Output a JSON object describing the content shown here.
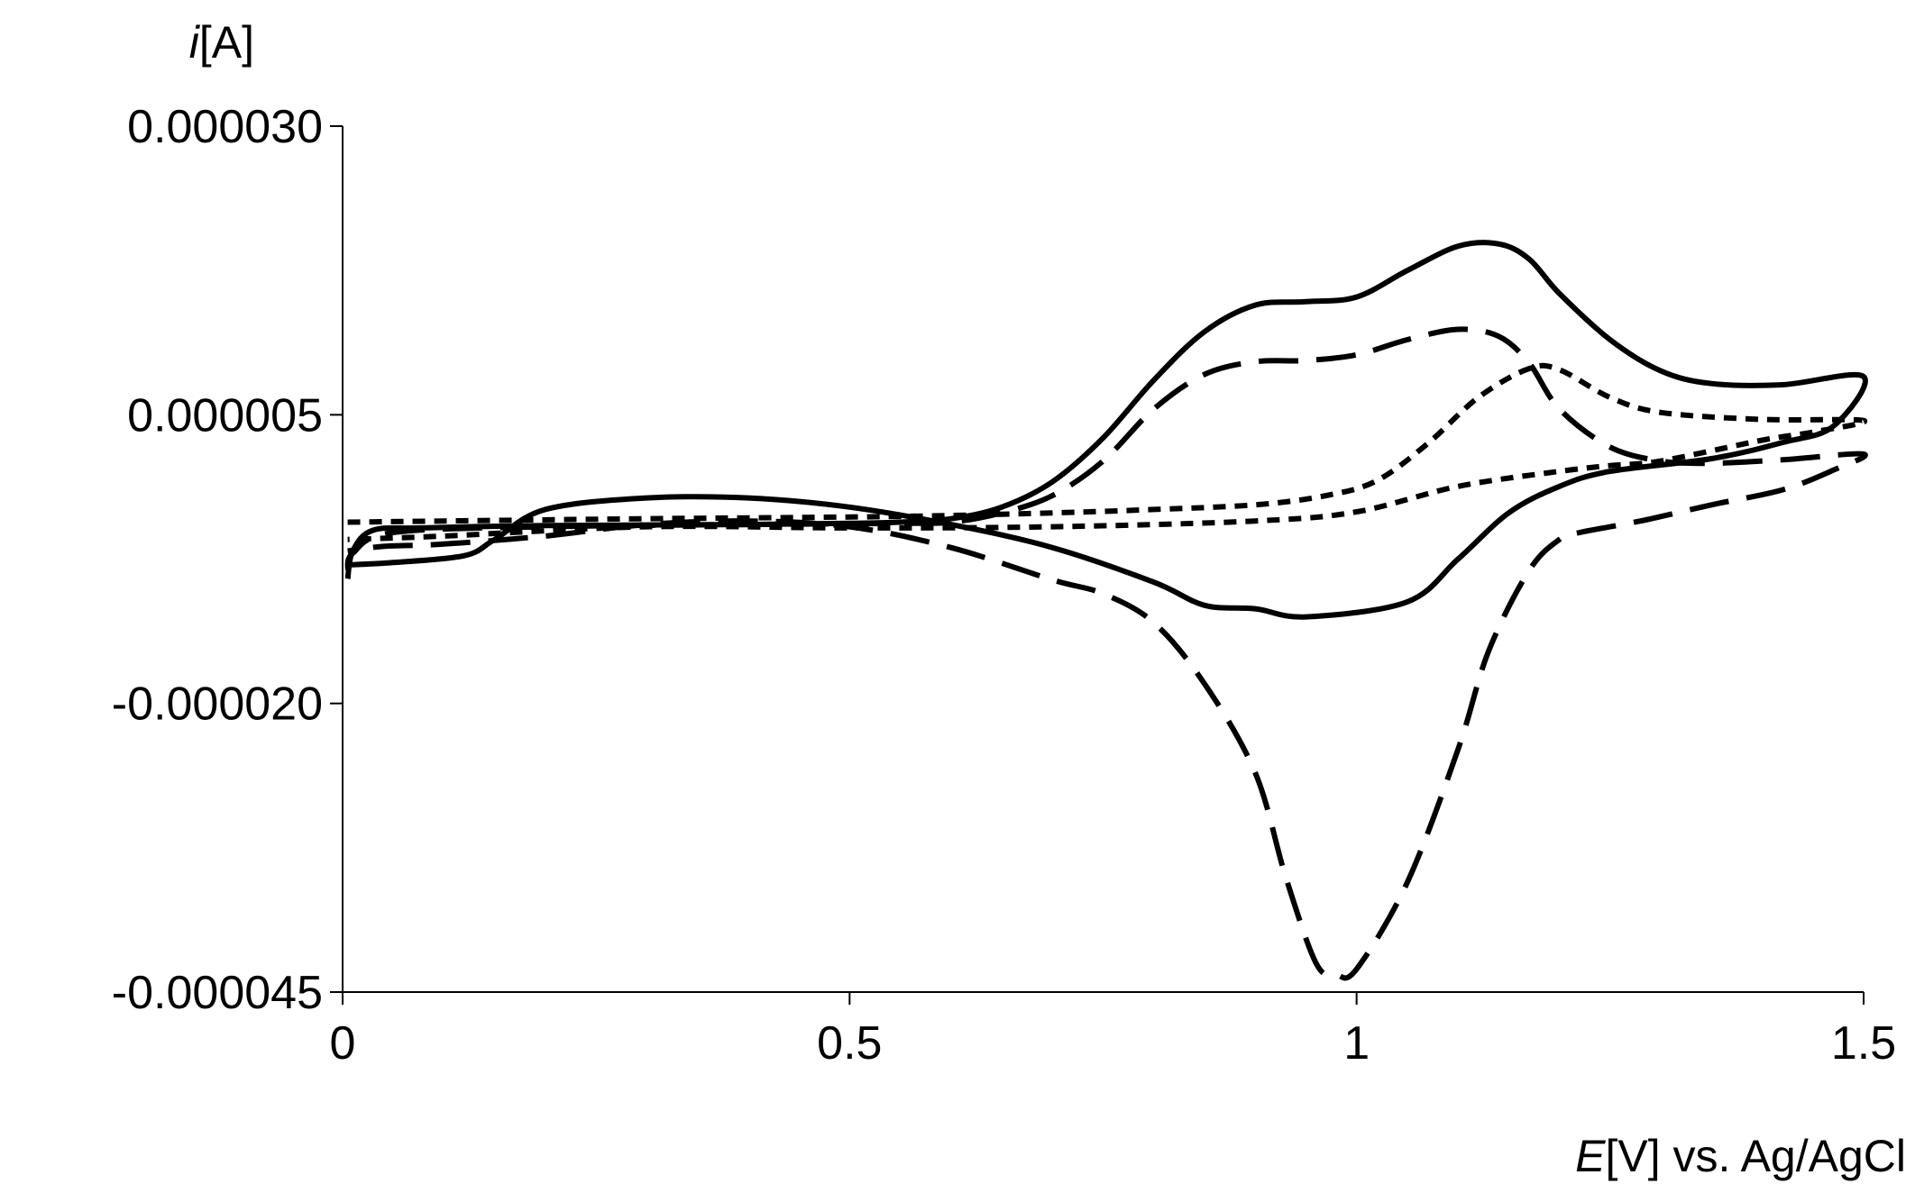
{
  "chart_data": {
    "type": "line",
    "title": "",
    "xlabel_italic": "E",
    "xlabel_rest": "[V] vs. Ag/AgCl",
    "ylabel_italic": "i",
    "ylabel_rest": "[A]",
    "xlim": [
      0,
      1.5
    ],
    "ylim": [
      -4.5e-05,
      3e-05
    ],
    "xticks": [
      0,
      0.5,
      1,
      1.5
    ],
    "xtick_labels": [
      "0",
      "0.5",
      "1",
      "1.5"
    ],
    "yticks": [
      3e-05,
      5e-06,
      -2e-05,
      -4.5e-05
    ],
    "ytick_labels": [
      "0.000030",
      "0.000005",
      "-0.000020",
      "-0.000045"
    ],
    "grid": false,
    "legend": "none",
    "series": [
      {
        "style": "solid",
        "color": "#000000",
        "points": [
          [
            0.005,
            -9.2e-06
          ],
          [
            0.01,
            -6.8e-06
          ],
          [
            0.03,
            -5e-06
          ],
          [
            0.08,
            -4.8e-06
          ],
          [
            0.2,
            -4.6e-06
          ],
          [
            0.4,
            -4.5e-06
          ],
          [
            0.5,
            -4.4e-06
          ],
          [
            0.55,
            -4.3e-06
          ],
          [
            0.6,
            -4e-06
          ],
          [
            0.65,
            -3e-06
          ],
          [
            0.7,
            -8e-07
          ],
          [
            0.75,
            3e-06
          ],
          [
            0.8,
            8e-06
          ],
          [
            0.85,
            1.22e-05
          ],
          [
            0.9,
            1.45e-05
          ],
          [
            0.95,
            1.48e-05
          ],
          [
            1.0,
            1.52e-05
          ],
          [
            1.05,
            1.75e-05
          ],
          [
            1.1,
            1.96e-05
          ],
          [
            1.14,
            1.98e-05
          ],
          [
            1.17,
            1.85e-05
          ],
          [
            1.2,
            1.55e-05
          ],
          [
            1.25,
            1.15e-05
          ],
          [
            1.3,
            8.8e-06
          ],
          [
            1.35,
            7.7e-06
          ],
          [
            1.42,
            7.6e-06
          ],
          [
            1.5,
            8.3e-06
          ],
          [
            1.47,
            4e-06
          ],
          [
            1.42,
            2.6e-06
          ],
          [
            1.35,
            1.2e-06
          ],
          [
            1.25,
            1e-07
          ],
          [
            1.2,
            -1.2e-06
          ],
          [
            1.15,
            -3.5e-06
          ],
          [
            1.1,
            -7.5e-06
          ],
          [
            1.05,
            -1.12e-05
          ],
          [
            0.95,
            -1.25e-05
          ],
          [
            0.9,
            -1.18e-05
          ],
          [
            0.85,
            -1.15e-05
          ],
          [
            0.8,
            -9.5e-06
          ],
          [
            0.7,
            -6.5e-06
          ],
          [
            0.6,
            -4.5e-06
          ],
          [
            0.5,
            -3e-06
          ],
          [
            0.4,
            -2.2e-06
          ],
          [
            0.3,
            -2.2e-06
          ],
          [
            0.2,
            -3.2e-06
          ],
          [
            0.15,
            -5.8e-06
          ],
          [
            0.12,
            -7.2e-06
          ],
          [
            0.05,
            -7.8e-06
          ],
          [
            0.005,
            -8e-06
          ]
        ]
      },
      {
        "style": "dashed",
        "color": "#000000",
        "points": [
          [
            0.005,
            -8.5e-06
          ],
          [
            0.01,
            -7e-06
          ],
          [
            0.05,
            -5.2e-06
          ],
          [
            0.2,
            -4.7e-06
          ],
          [
            0.4,
            -4.5e-06
          ],
          [
            0.55,
            -4.4e-06
          ],
          [
            0.6,
            -4.3e-06
          ],
          [
            0.65,
            -3.5e-06
          ],
          [
            0.7,
            -2e-06
          ],
          [
            0.75,
            1e-06
          ],
          [
            0.8,
            5.5e-06
          ],
          [
            0.85,
            8.5e-06
          ],
          [
            0.9,
            9.6e-06
          ],
          [
            0.95,
            9.7e-06
          ],
          [
            1.0,
            1.02e-05
          ],
          [
            1.05,
            1.15e-05
          ],
          [
            1.1,
            1.24e-05
          ],
          [
            1.14,
            1.18e-05
          ],
          [
            1.17,
            9.5e-06
          ],
          [
            1.2,
            5.5e-06
          ],
          [
            1.25,
            2.2e-06
          ],
          [
            1.3,
            1e-06
          ],
          [
            1.35,
            8e-07
          ],
          [
            1.42,
            1.1e-06
          ],
          [
            1.5,
            1.6e-06
          ],
          [
            1.47,
            2e-07
          ],
          [
            1.42,
            -1.5e-06
          ],
          [
            1.35,
            -2.8e-06
          ],
          [
            1.28,
            -4.2e-06
          ],
          [
            1.22,
            -5.2e-06
          ],
          [
            1.2,
            -5.8e-06
          ],
          [
            1.17,
            -8.5e-06
          ],
          [
            1.13,
            -1.55e-05
          ],
          [
            1.1,
            -2.4e-05
          ],
          [
            1.05,
            -3.55e-05
          ],
          [
            1.0,
            -4.3e-05
          ],
          [
            0.98,
            -4.35e-05
          ],
          [
            0.96,
            -4.25e-05
          ],
          [
            0.93,
            -3.5e-05
          ],
          [
            0.9,
            -2.6e-05
          ],
          [
            0.85,
            -1.83e-05
          ],
          [
            0.8,
            -1.3e-05
          ],
          [
            0.75,
            -1.05e-05
          ],
          [
            0.7,
            -9.3e-06
          ],
          [
            0.6,
            -6.5e-06
          ],
          [
            0.5,
            -4.7e-06
          ],
          [
            0.4,
            -4.2e-06
          ],
          [
            0.3,
            -4.5e-06
          ],
          [
            0.2,
            -5.5e-06
          ],
          [
            0.1,
            -6.2e-06
          ],
          [
            0.04,
            -6.4e-06
          ],
          [
            0.005,
            -6.8e-06
          ]
        ]
      },
      {
        "style": "dotted",
        "color": "#000000",
        "points": [
          [
            0.005,
            -4.3e-06
          ],
          [
            0.1,
            -4.2e-06
          ],
          [
            0.3,
            -4e-06
          ],
          [
            0.55,
            -3.8e-06
          ],
          [
            0.7,
            -3.5e-06
          ],
          [
            0.8,
            -3.2e-06
          ],
          [
            0.9,
            -2.8e-06
          ],
          [
            0.97,
            -2e-06
          ],
          [
            1.02,
            -7e-07
          ],
          [
            1.07,
            2.5e-06
          ],
          [
            1.12,
            6.5e-06
          ],
          [
            1.17,
            9e-06
          ],
          [
            1.2,
            8.9e-06
          ],
          [
            1.25,
            6.5e-06
          ],
          [
            1.3,
            5.2e-06
          ],
          [
            1.4,
            4.6e-06
          ],
          [
            1.5,
            4.5e-06
          ],
          [
            1.45,
            3.5e-06
          ],
          [
            1.4,
            2.8e-06
          ],
          [
            1.3,
            1e-06
          ],
          [
            1.25,
            6e-07
          ],
          [
            1.2,
            1e-07
          ],
          [
            1.1,
            -1.2e-06
          ],
          [
            1.0,
            -3.4e-06
          ],
          [
            0.9,
            -4.2e-06
          ],
          [
            0.7,
            -4.7e-06
          ],
          [
            0.5,
            -4.8e-06
          ],
          [
            0.3,
            -4.7e-06
          ],
          [
            0.1,
            -5.5e-06
          ],
          [
            0.005,
            -5.8e-06
          ]
        ]
      }
    ]
  }
}
